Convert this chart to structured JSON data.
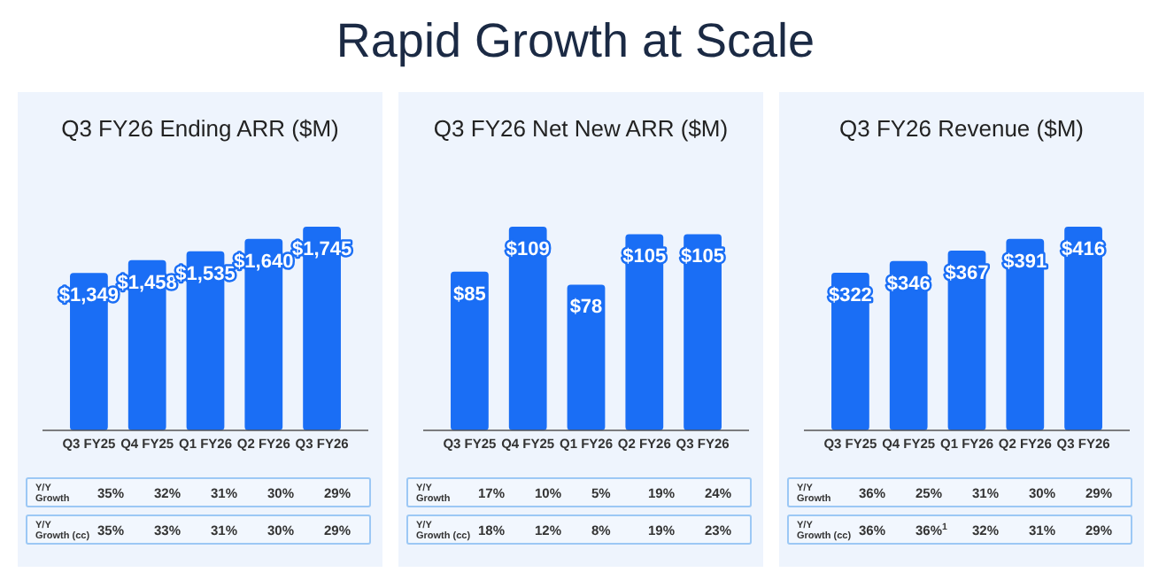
{
  "chart_data": [
    {
      "type": "bar",
      "title": "Q3 FY26 Ending ARR ($M)",
      "categories": [
        "Q3 FY25",
        "Q4 FY25",
        "Q1 FY26",
        "Q2 FY26",
        "Q3 FY26"
      ],
      "values": [
        1349,
        1458,
        1535,
        1640,
        1745
      ],
      "value_labels": [
        "$1,349",
        "$1,458",
        "$1,535",
        "$1,640",
        "$1,745"
      ],
      "color": "#1a6ef5",
      "annotations": [
        "Rapid Growth at Scale",
        "Y/Y Growth",
        "35%",
        "32%",
        "31%",
        "30%",
        "29%",
        "Y/Y Growth (cc)",
        "35%",
        "33%",
        "31%",
        "30%",
        "29%"
      ]
    },
    {
      "type": "bar",
      "title": "Q3 FY26 Net New ARR ($M)",
      "categories": [
        "Q3 FY25",
        "Q4 FY25",
        "Q1 FY26",
        "Q2 FY26",
        "Q3 FY26"
      ],
      "values": [
        85,
        109,
        78,
        105,
        105
      ],
      "value_labels": [
        "$85",
        "$109",
        "$78",
        "$105",
        "$105"
      ],
      "color": "#1a6ef5",
      "annotations": [
        "Y/Y Growth",
        "17%",
        "10%",
        "5%",
        "19%",
        "24%",
        "Y/Y Growth (cc)",
        "18%",
        "12%",
        "8%",
        "19%",
        "23%"
      ]
    },
    {
      "type": "bar",
      "title": "Q3 FY26 Revenue ($M)",
      "categories": [
        "Q3 FY25",
        "Q4 FY25",
        "Q1 FY26",
        "Q2 FY26",
        "Q3 FY26"
      ],
      "values": [
        322,
        346,
        367,
        391,
        416
      ],
      "value_labels": [
        "$322",
        "$346",
        "$367",
        "$391",
        "$416"
      ],
      "color": "#1a6ef5",
      "annotations": [
        "Y/Y Growth",
        "36%",
        "25%",
        "31%",
        "30%",
        "29%",
        "Y/Y Growth (cc)",
        "36%",
        "36%$^{1}$",
        "32%",
        "31%",
        "29%"
      ]
    }
  ]
}
